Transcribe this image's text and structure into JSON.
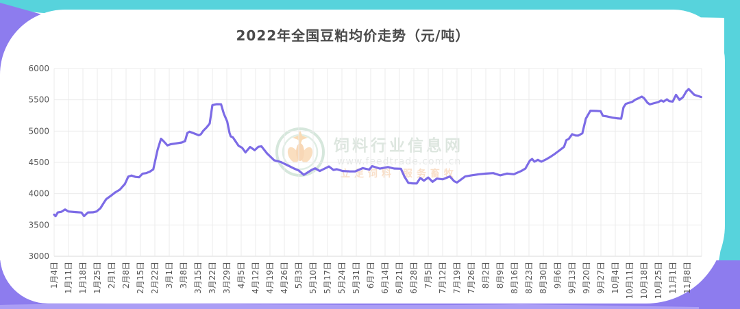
{
  "page": {
    "background_color": "#ffffff",
    "accent_teal": "#57d3dc",
    "accent_purple": "#8d7cee",
    "accent_purple_light": "#ab9ef5"
  },
  "chart_data": {
    "type": "line",
    "title": "2022年全国豆粕均价走势（元/吨）",
    "series_name": "豆粕均价",
    "unit": "元/吨",
    "line_color": "#7c6be6",
    "grid": true,
    "legend": "none",
    "ylim": [
      3000,
      6000
    ],
    "yticks": [
      3000,
      3500,
      4000,
      4500,
      5000,
      5500,
      6000
    ],
    "categories": [
      "1月4日",
      "1月11日",
      "1月18日",
      "1月25日",
      "2月1日",
      "2月8日",
      "2月15日",
      "2月22日",
      "3月1日",
      "3月8日",
      "3月15日",
      "3月22日",
      "3月29日",
      "4月5日",
      "4月12日",
      "4月19日",
      "4月26日",
      "5月3日",
      "5月10日",
      "5月17日",
      "5月24日",
      "5月31日",
      "6月7日",
      "6月14日",
      "6月21日",
      "6月28日",
      "7月5日",
      "7月12日",
      "7月19日",
      "7月26日",
      "8月2日",
      "8月9日",
      "8月16日",
      "8月23日",
      "8月30日",
      "9月6日",
      "9月13日",
      "9月20日",
      "9月27日",
      "10月4日",
      "10月11日",
      "10月18日",
      "10月25日",
      "11月1日",
      "11月8日"
    ],
    "x_unit": "week_index_from_1月4日",
    "points": [
      [
        0,
        3665
      ],
      [
        0.1,
        3640
      ],
      [
        0.25,
        3700
      ],
      [
        0.5,
        3710
      ],
      [
        0.76,
        3748
      ],
      [
        1,
        3715
      ],
      [
        1.5,
        3705
      ],
      [
        1.9,
        3698
      ],
      [
        2.08,
        3642
      ],
      [
        2.35,
        3700
      ],
      [
        2.7,
        3702
      ],
      [
        2.95,
        3715
      ],
      [
        3.22,
        3768
      ],
      [
        3.46,
        3858
      ],
      [
        3.62,
        3912
      ],
      [
        3.94,
        3966
      ],
      [
        4.25,
        4022
      ],
      [
        4.57,
        4065
      ],
      [
        4.92,
        4155
      ],
      [
        5.15,
        4272
      ],
      [
        5.37,
        4290
      ],
      [
        5.65,
        4268
      ],
      [
        5.9,
        4262
      ],
      [
        6.15,
        4320
      ],
      [
        6.4,
        4328
      ],
      [
        6.65,
        4352
      ],
      [
        6.89,
        4388
      ],
      [
        7.19,
        4700
      ],
      [
        7.43,
        4878
      ],
      [
        7.6,
        4840
      ],
      [
        7.87,
        4772
      ],
      [
        8.1,
        4790
      ],
      [
        8.4,
        4800
      ],
      [
        8.87,
        4818
      ],
      [
        9.1,
        4840
      ],
      [
        9.25,
        4968
      ],
      [
        9.41,
        4990
      ],
      [
        9.73,
        4962
      ],
      [
        10.05,
        4934
      ],
      [
        10.2,
        4950
      ],
      [
        10.37,
        5007
      ],
      [
        10.6,
        5060
      ],
      [
        10.81,
        5120
      ],
      [
        11,
        5415
      ],
      [
        11.3,
        5430
      ],
      [
        11.6,
        5428
      ],
      [
        11.79,
        5281
      ],
      [
        12.03,
        5153
      ],
      [
        12.19,
        4971
      ],
      [
        12.27,
        4916
      ],
      [
        12.43,
        4898
      ],
      [
        12.59,
        4843
      ],
      [
        12.82,
        4765
      ],
      [
        13.06,
        4734
      ],
      [
        13.3,
        4660
      ],
      [
        13.62,
        4746
      ],
      [
        13.94,
        4695
      ],
      [
        14.2,
        4750
      ],
      [
        14.41,
        4756
      ],
      [
        14.6,
        4700
      ],
      [
        14.81,
        4640
      ],
      [
        15.29,
        4534
      ],
      [
        15.76,
        4505
      ],
      [
        16.24,
        4452
      ],
      [
        16.71,
        4398
      ],
      [
        17,
        4370
      ],
      [
        17.35,
        4301
      ],
      [
        17.9,
        4380
      ],
      [
        18.14,
        4405
      ],
      [
        18.46,
        4362
      ],
      [
        18.71,
        4391
      ],
      [
        19.1,
        4434
      ],
      [
        19.41,
        4380
      ],
      [
        19.65,
        4391
      ],
      [
        20.05,
        4362
      ],
      [
        20.52,
        4357
      ],
      [
        20.92,
        4356
      ],
      [
        21.16,
        4380
      ],
      [
        21.45,
        4408
      ],
      [
        21.9,
        4385
      ],
      [
        22.1,
        4440
      ],
      [
        22.65,
        4400
      ],
      [
        23.2,
        4425
      ],
      [
        23.63,
        4402
      ],
      [
        24.1,
        4398
      ],
      [
        24.35,
        4270
      ],
      [
        24.62,
        4172
      ],
      [
        24.9,
        4165
      ],
      [
        25.2,
        4163
      ],
      [
        25.45,
        4250
      ],
      [
        25.7,
        4208
      ],
      [
        26,
        4258
      ],
      [
        26.3,
        4190
      ],
      [
        26.6,
        4240
      ],
      [
        27,
        4230
      ],
      [
        27.5,
        4275
      ],
      [
        27.8,
        4200
      ],
      [
        28,
        4178
      ],
      [
        28.3,
        4230
      ],
      [
        28.56,
        4275
      ],
      [
        29,
        4293
      ],
      [
        29.54,
        4311
      ],
      [
        30,
        4320
      ],
      [
        30.52,
        4328
      ],
      [
        31,
        4293
      ],
      [
        31.48,
        4322
      ],
      [
        31.95,
        4311
      ],
      [
        32.49,
        4365
      ],
      [
        32.75,
        4402
      ],
      [
        33.06,
        4529
      ],
      [
        33.22,
        4555
      ],
      [
        33.38,
        4511
      ],
      [
        33.62,
        4540
      ],
      [
        33.86,
        4511
      ],
      [
        34.18,
        4547
      ],
      [
        34.46,
        4584
      ],
      [
        34.81,
        4638
      ],
      [
        35.13,
        4693
      ],
      [
        35.44,
        4747
      ],
      [
        35.6,
        4856
      ],
      [
        35.76,
        4875
      ],
      [
        36,
        4950
      ],
      [
        36.24,
        4929
      ],
      [
        36.43,
        4928
      ],
      [
        36.71,
        4964
      ],
      [
        36.95,
        5199
      ],
      [
        37.27,
        5326
      ],
      [
        37.7,
        5322
      ],
      [
        37.98,
        5318
      ],
      [
        38.14,
        5243
      ],
      [
        38.4,
        5236
      ],
      [
        38.8,
        5215
      ],
      [
        39.1,
        5205
      ],
      [
        39.41,
        5199
      ],
      [
        39.57,
        5380
      ],
      [
        39.73,
        5435
      ],
      [
        39.97,
        5453
      ],
      [
        40.2,
        5470
      ],
      [
        40.37,
        5500
      ],
      [
        40.52,
        5515
      ],
      [
        40.84,
        5551
      ],
      [
        41,
        5526
      ],
      [
        41.24,
        5453
      ],
      [
        41.4,
        5427
      ],
      [
        41.63,
        5442
      ],
      [
        41.98,
        5464
      ],
      [
        42.19,
        5489
      ],
      [
        42.35,
        5471
      ],
      [
        42.59,
        5507
      ],
      [
        42.75,
        5478
      ],
      [
        42.99,
        5471
      ],
      [
        43.22,
        5580
      ],
      [
        43.46,
        5500
      ],
      [
        43.7,
        5540
      ],
      [
        43.94,
        5635
      ],
      [
        44.1,
        5672
      ],
      [
        44.49,
        5580
      ],
      [
        44.97,
        5544
      ]
    ]
  },
  "watermark": {
    "site_name": "饲料行业信息网",
    "url": "www.feedtrade.com.cn",
    "slogan": "立足饲料  服务畜牧",
    "logo": "wheat-book-circle-logo"
  }
}
